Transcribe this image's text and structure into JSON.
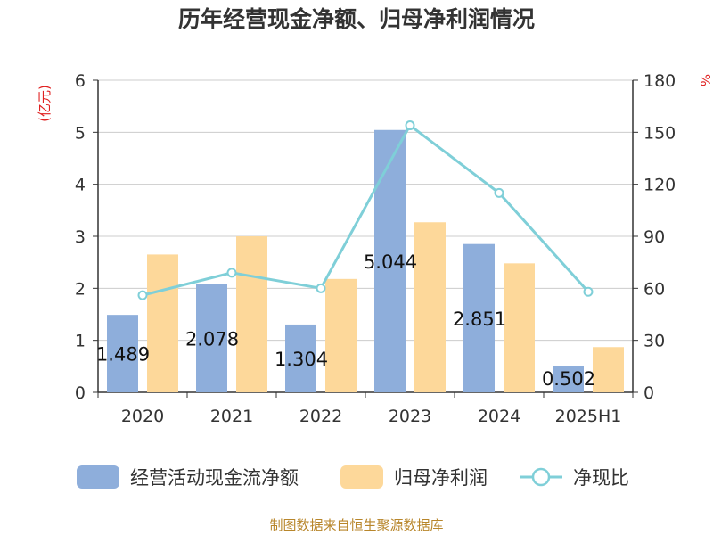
{
  "title": "历年经营现金净额、归母净利润情况",
  "source": "制图数据来自恒生聚源数据库",
  "colors": {
    "cashflow": "#8eaedb",
    "profit": "#fdd89a",
    "ratio": "#7fcfd8",
    "unit": "#e02020",
    "axis": "#333333",
    "grid": "#cccccc"
  },
  "chart_data": {
    "type": "bar",
    "categories": [
      "2020",
      "2021",
      "2022",
      "2023",
      "2024",
      "2025H1"
    ],
    "left_axis": {
      "unit": "(亿元)",
      "ylim": [
        0,
        6
      ],
      "ticks": [
        "0",
        "1",
        "2",
        "3",
        "4",
        "5",
        "6"
      ]
    },
    "right_axis": {
      "unit": "%",
      "ylim": [
        0,
        180
      ],
      "ticks": [
        "0",
        "30",
        "60",
        "90",
        "120",
        "150",
        "180"
      ]
    },
    "grid": true,
    "legend_position": "bottom",
    "series": [
      {
        "name": "经营活动现金流净额",
        "type": "bar",
        "axis": "left",
        "values": [
          1.489,
          2.078,
          1.304,
          5.044,
          2.851,
          0.502
        ],
        "labels": [
          "1.489",
          "2.078",
          "1.304",
          "5.044",
          "2.851",
          "0.502"
        ]
      },
      {
        "name": "归母净利润",
        "type": "bar",
        "axis": "left",
        "values": [
          2.65,
          3.0,
          2.18,
          3.27,
          2.48,
          0.87
        ]
      },
      {
        "name": "净现比",
        "type": "line",
        "axis": "right",
        "values": [
          56,
          69,
          60,
          154,
          115,
          58
        ]
      }
    ]
  }
}
